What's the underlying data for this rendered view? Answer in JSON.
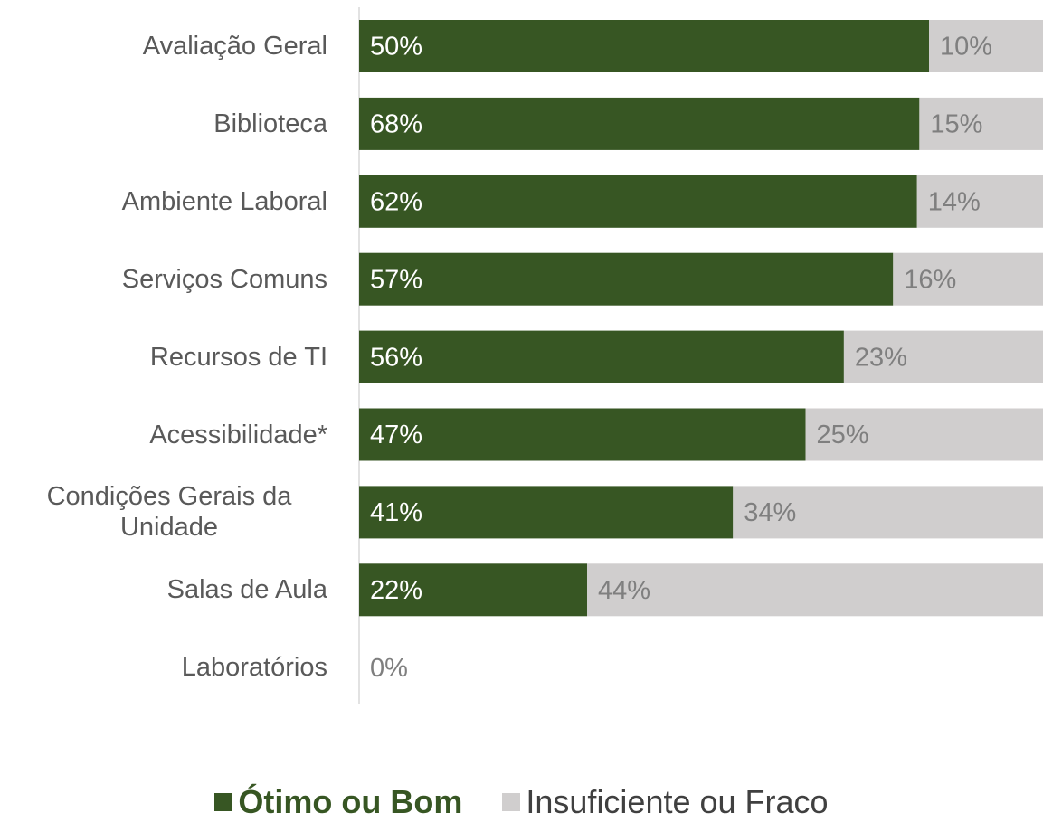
{
  "chart_data": {
    "type": "bar",
    "orientation": "horizontal",
    "stacking": "percent",
    "categories": [
      "Avaliação Geral",
      "Biblioteca",
      "Ambiente Laboral",
      "Serviços Comuns",
      "Recursos de TI",
      "Acessibilidade*",
      "Condições Gerais da Unidade",
      "Salas de Aula",
      "Laboratórios"
    ],
    "series": [
      {
        "name": "Ótimo ou Bom",
        "color": "#375623",
        "label_color": "#ffffff",
        "values": [
          50,
          68,
          62,
          57,
          56,
          47,
          41,
          22,
          0
        ],
        "value_labels": [
          "50%",
          "68%",
          "62%",
          "57%",
          "56%",
          "47%",
          "41%",
          "22%",
          "0%"
        ]
      },
      {
        "name": "Insuficiente ou Fraco",
        "color": "#d0cece",
        "label_color": "#7f7f7f",
        "values": [
          10,
          15,
          14,
          16,
          23,
          25,
          34,
          44,
          0
        ],
        "value_labels": [
          "10%",
          "15%",
          "14%",
          "16%",
          "23%",
          "25%",
          "34%",
          "44%",
          "0%"
        ]
      }
    ],
    "legend": "bottom"
  }
}
